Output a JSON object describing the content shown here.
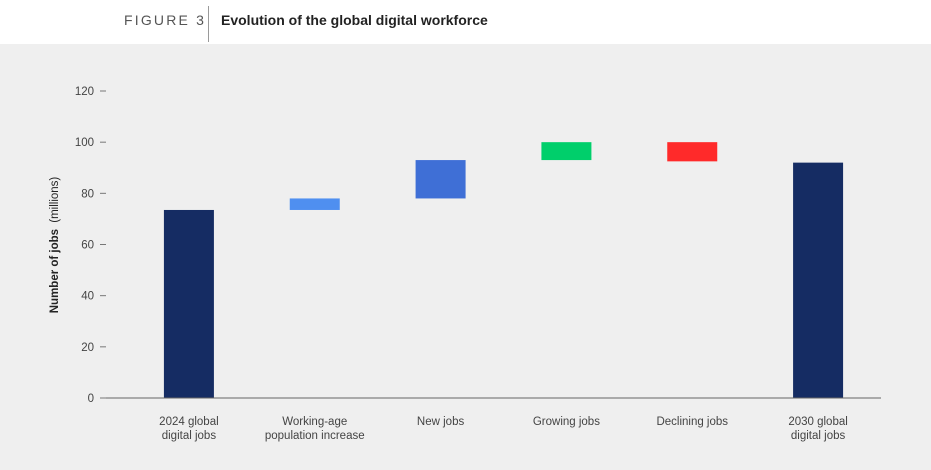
{
  "header": {
    "figure_label": "FIGURE 3",
    "title": "Evolution of the global digital workforce"
  },
  "chart_data": {
    "type": "bar",
    "subtype": "waterfall",
    "title": "Evolution of the global digital workforce",
    "ylabel_main": "Number of jobs",
    "ylabel_unit": "(millions)",
    "ylim": [
      0,
      120
    ],
    "yticks": [
      0,
      20,
      40,
      60,
      80,
      100,
      120
    ],
    "grid": false,
    "categories": [
      [
        "2024 global",
        "digital jobs"
      ],
      [
        "Working-age",
        "population increase"
      ],
      [
        "New jobs"
      ],
      [
        "Growing jobs"
      ],
      [
        "Declining jobs"
      ],
      [
        "2030 global",
        "digital jobs"
      ]
    ],
    "bars": [
      {
        "start": 0,
        "end": 73.5,
        "kind": "total",
        "color": "#152c63"
      },
      {
        "start": 73.5,
        "end": 78,
        "kind": "increase",
        "color": "#4f8ff0"
      },
      {
        "start": 78,
        "end": 93,
        "kind": "increase",
        "color": "#3f6fd6"
      },
      {
        "start": 93,
        "end": 100,
        "kind": "increase",
        "color": "#00cf6b"
      },
      {
        "start": 100,
        "end": 92.5,
        "kind": "decrease",
        "color": "#ff2a2a"
      },
      {
        "start": 0,
        "end": 92,
        "kind": "total",
        "color": "#152c63"
      }
    ]
  }
}
